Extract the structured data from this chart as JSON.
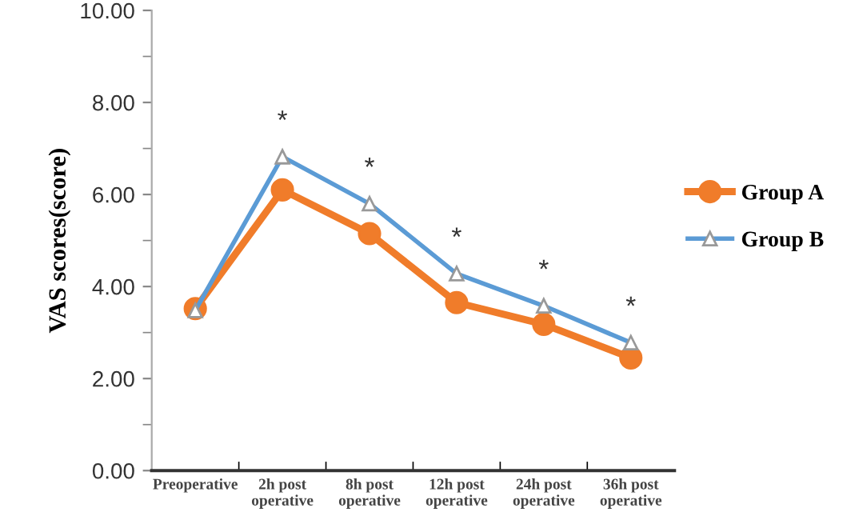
{
  "chart_data": {
    "type": "line",
    "ylabel": "VAS scores(score)",
    "categories": [
      "Preoperative",
      "2h post\noperative",
      "8h post\noperative",
      "12h post\noperative",
      "24h post\noperative",
      "36h post\noperative"
    ],
    "series": [
      {
        "name": "Group A",
        "color": "#f07c2a",
        "marker": "circle",
        "values": [
          3.52,
          6.1,
          5.15,
          3.65,
          3.18,
          2.45
        ]
      },
      {
        "name": "Group B",
        "color": "#5b9bd5",
        "marker": "triangle",
        "values": [
          3.48,
          6.82,
          5.8,
          4.28,
          3.58,
          2.78
        ]
      }
    ],
    "ylim": [
      0,
      10
    ],
    "yticks": [
      {
        "value": 0,
        "label": "0.00"
      },
      {
        "value": 2,
        "label": "2.00"
      },
      {
        "value": 4,
        "label": "4.00"
      },
      {
        "value": 6,
        "label": "6.00"
      },
      {
        "value": 8,
        "label": "8.00"
      },
      {
        "value": 10,
        "label": "10.00"
      }
    ],
    "annotations": [
      "*",
      "*",
      "*",
      "*",
      "*"
    ],
    "legend": "right",
    "grid": false
  }
}
